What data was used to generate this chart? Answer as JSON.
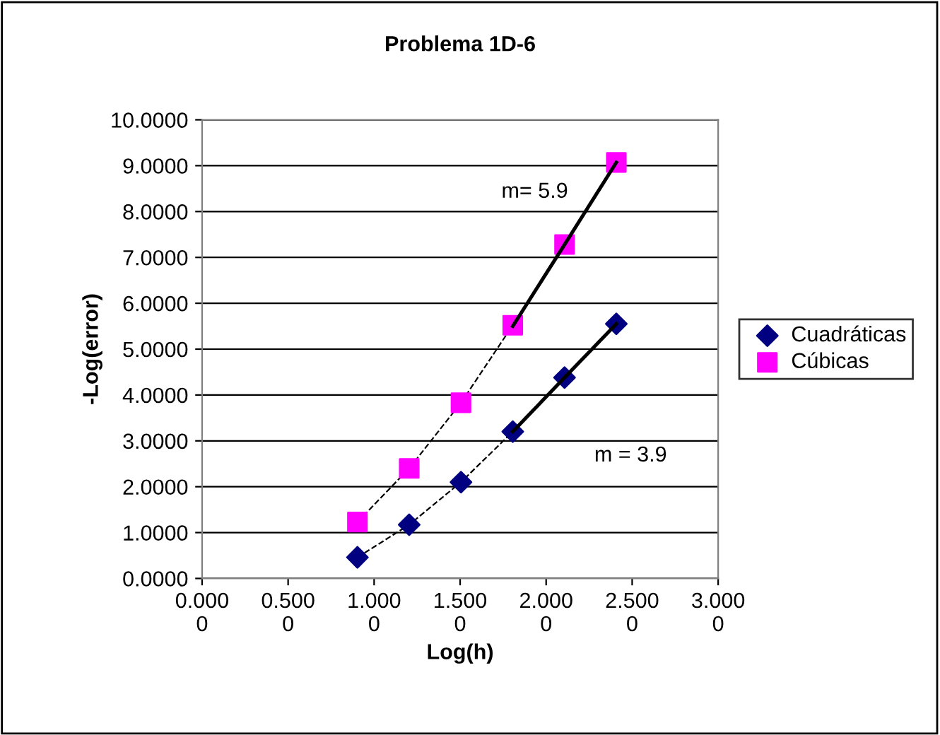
{
  "chart_data": {
    "type": "scatter",
    "title": "Problema 1D-6",
    "xlabel": "Log(h)",
    "ylabel": "-Log(error)",
    "x": [
      0.903,
      1.204,
      1.505,
      1.806,
      2.107,
      2.408
    ],
    "series": [
      {
        "name": "Cuadráticas",
        "marker": "diamond",
        "color": "#000080",
        "values": [
          0.46,
          1.17,
          2.1,
          3.2,
          4.38,
          5.55
        ]
      },
      {
        "name": "Cúbicas",
        "marker": "square",
        "color": "#ff00ff",
        "values": [
          1.23,
          2.4,
          3.83,
          5.52,
          7.28,
          9.07
        ]
      },
      {
        "type": "line",
        "line_style": "dashed",
        "color": "#000000",
        "values": [
          0.46,
          1.17,
          2.1,
          3.2,
          4.38,
          5.55
        ]
      },
      {
        "type": "line",
        "line_style": "dashed",
        "color": "#000000",
        "values": [
          1.23,
          2.4,
          3.83,
          5.52,
          7.28,
          9.07
        ]
      },
      {
        "type": "line",
        "line_style": "solid",
        "color": "#000000",
        "values": [
          null,
          null,
          null,
          3.2,
          4.38,
          5.55
        ]
      },
      {
        "type": "line",
        "line_style": "solid",
        "color": "#000000",
        "values": [
          null,
          null,
          null,
          5.5,
          7.28,
          9.07
        ]
      }
    ],
    "annotations": [
      "m= 5.9",
      "m = 3.9"
    ],
    "xlim": [
      0,
      3
    ],
    "ylim": [
      0,
      10
    ],
    "xticks": [
      {
        "value": 0,
        "label": "0.0000"
      },
      {
        "value": 0.5,
        "label": "0.5000"
      },
      {
        "value": 1,
        "label": "1.0000"
      },
      {
        "value": 1.5,
        "label": "1.5000"
      },
      {
        "value": 2,
        "label": "2.0000"
      },
      {
        "value": 2.5,
        "label": "2.5000"
      },
      {
        "value": 3,
        "label": "3.0000"
      }
    ],
    "yticks": [
      {
        "value": 0,
        "label": "0.0000"
      },
      {
        "value": 1,
        "label": "1.0000"
      },
      {
        "value": 2,
        "label": "2.0000"
      },
      {
        "value": 3,
        "label": "3.0000"
      },
      {
        "value": 4,
        "label": "4.0000"
      },
      {
        "value": 5,
        "label": "5.0000"
      },
      {
        "value": 6,
        "label": "6.0000"
      },
      {
        "value": 7,
        "label": "7.0000"
      },
      {
        "value": 8,
        "label": "8.0000"
      },
      {
        "value": 9,
        "label": "9.0000"
      },
      {
        "value": 10,
        "label": "10.0000"
      }
    ],
    "grid": "y",
    "legend": "right"
  }
}
